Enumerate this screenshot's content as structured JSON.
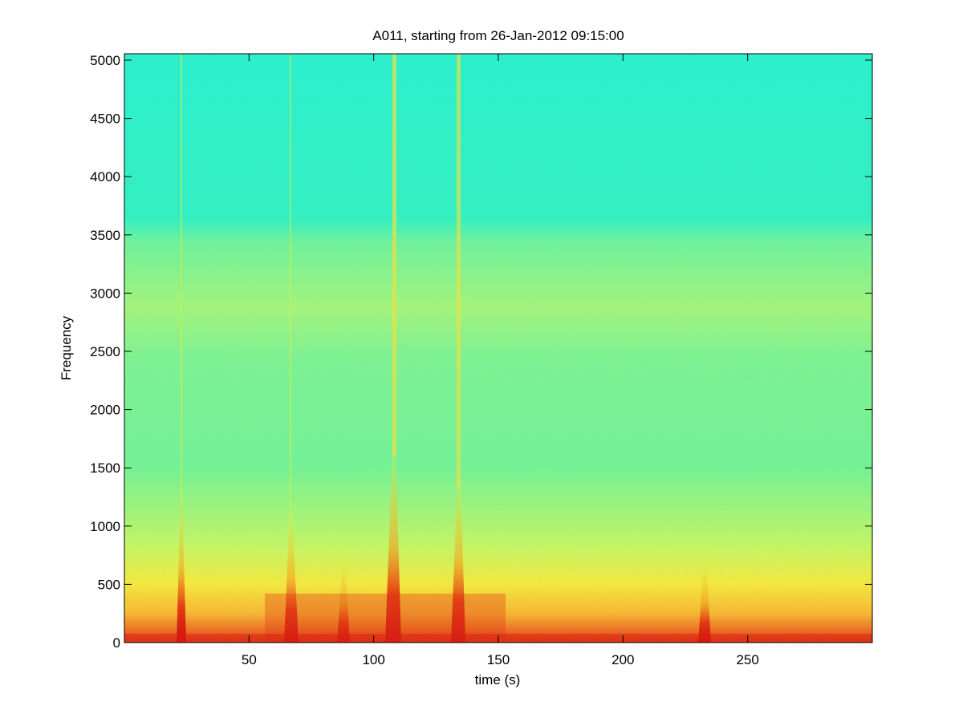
{
  "chart_data": {
    "type": "spectrogram",
    "title": "A011, starting from 26-Jan-2012 09:15:00",
    "xlabel": "time (s)",
    "ylabel": "Frequency",
    "xlim": [
      0,
      300
    ],
    "xticks": [
      50,
      100,
      150,
      200,
      250
    ],
    "ylim": [
      0,
      5055
    ],
    "yticks": [
      0,
      500,
      1000,
      1500,
      2000,
      2500,
      3000,
      3500,
      4000,
      4500,
      5000
    ]
  }
}
